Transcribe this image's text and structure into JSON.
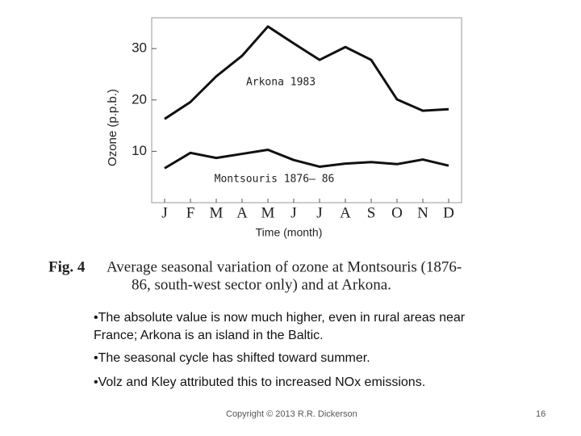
{
  "chart_data": {
    "type": "line",
    "y_label": "Ozone (p.p.b.)",
    "x_label": "Time (month)",
    "categories": [
      "J",
      "F",
      "M",
      "A",
      "M",
      "J",
      "J",
      "A",
      "S",
      "O",
      "N",
      "D"
    ],
    "series": [
      {
        "name": "Arkona 1983",
        "color": "#111111",
        "values": [
          16.3,
          19.6,
          24.6,
          28.6,
          34.3,
          31,
          27.8,
          30.3,
          27.8,
          20.1,
          17.9,
          18.2
        ]
      },
      {
        "name": "Montsouris 1876–  86",
        "color": "#111111",
        "values": [
          6.7,
          9.7,
          8.7,
          9.5,
          10.3,
          8.3,
          7,
          7.6,
          7.9,
          7.5,
          8.4,
          7.2
        ]
      }
    ],
    "ylim": [
      0,
      36
    ],
    "yticks": [
      10,
      20,
      30
    ],
    "grid": false
  },
  "caption": {
    "label": "Fig. 4",
    "lines": [
      "Average seasonal variation of ozone at Montsouris (1876-",
      "86, south-west sector only) and at Arkona."
    ]
  },
  "bullets": [
    "•The absolute value is now much higher, even in rural areas near France; Arkona is an island in the Baltic.",
    "•The seasonal cycle has shifted toward summer.",
    "•Volz and Kley attributed this to increased NOx emissions."
  ],
  "footer": {
    "copyright": "Copyright © 2013  R.R. Dickerson",
    "page": "16"
  }
}
